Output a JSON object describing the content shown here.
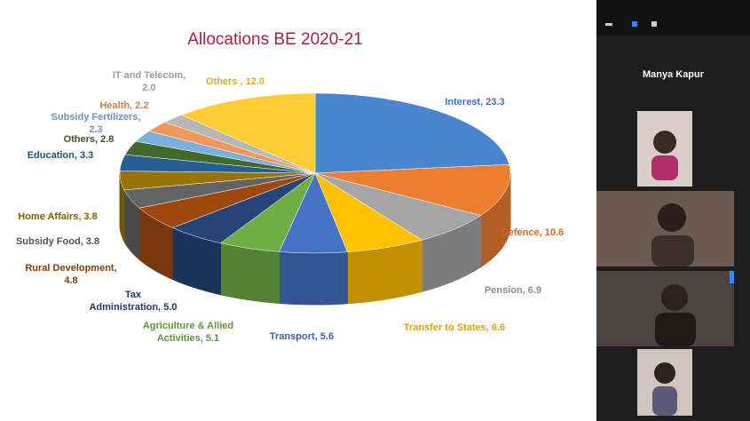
{
  "chart_data": {
    "type": "pie3d",
    "title": "Allocations BE 2020-21",
    "values": [
      23.3,
      10.6,
      6.9,
      6.6,
      5.6,
      5.1,
      5.0,
      4.8,
      3.8,
      3.8,
      3.3,
      2.8,
      2.3,
      2.2,
      2.0,
      12.0
    ],
    "value_labels": [
      "Interest, 23.3",
      "Defence, 10.6",
      "Pension, 6.9",
      "Transfer to States, 6.6",
      "Transport, 5.6",
      "Agriculture & Allied Activities, 5.1",
      "Tax Administration, 5.0",
      "Rural Development, 4.8",
      "Subsidy Food, 3.8",
      "Home Affairs, 3.8",
      "Education, 3.3",
      "Others, 2.8",
      "Subsidy Fertilizers, 2.3",
      "Health, 2.2",
      "IT and Telecom, 2.0",
      "Others , 12.0"
    ],
    "colors": [
      "#4a86d0",
      "#ed7d31",
      "#a5a5a5",
      "#ffc000",
      "#4472c4",
      "#70ad47",
      "#264478",
      "#9e480e",
      "#636363",
      "#997300",
      "#255e91",
      "#43682b",
      "#7cafdd",
      "#f1975a",
      "#b7b7b7",
      "#ffcd33"
    ]
  },
  "meeting": {
    "participant_name": "Manya Kapur"
  }
}
